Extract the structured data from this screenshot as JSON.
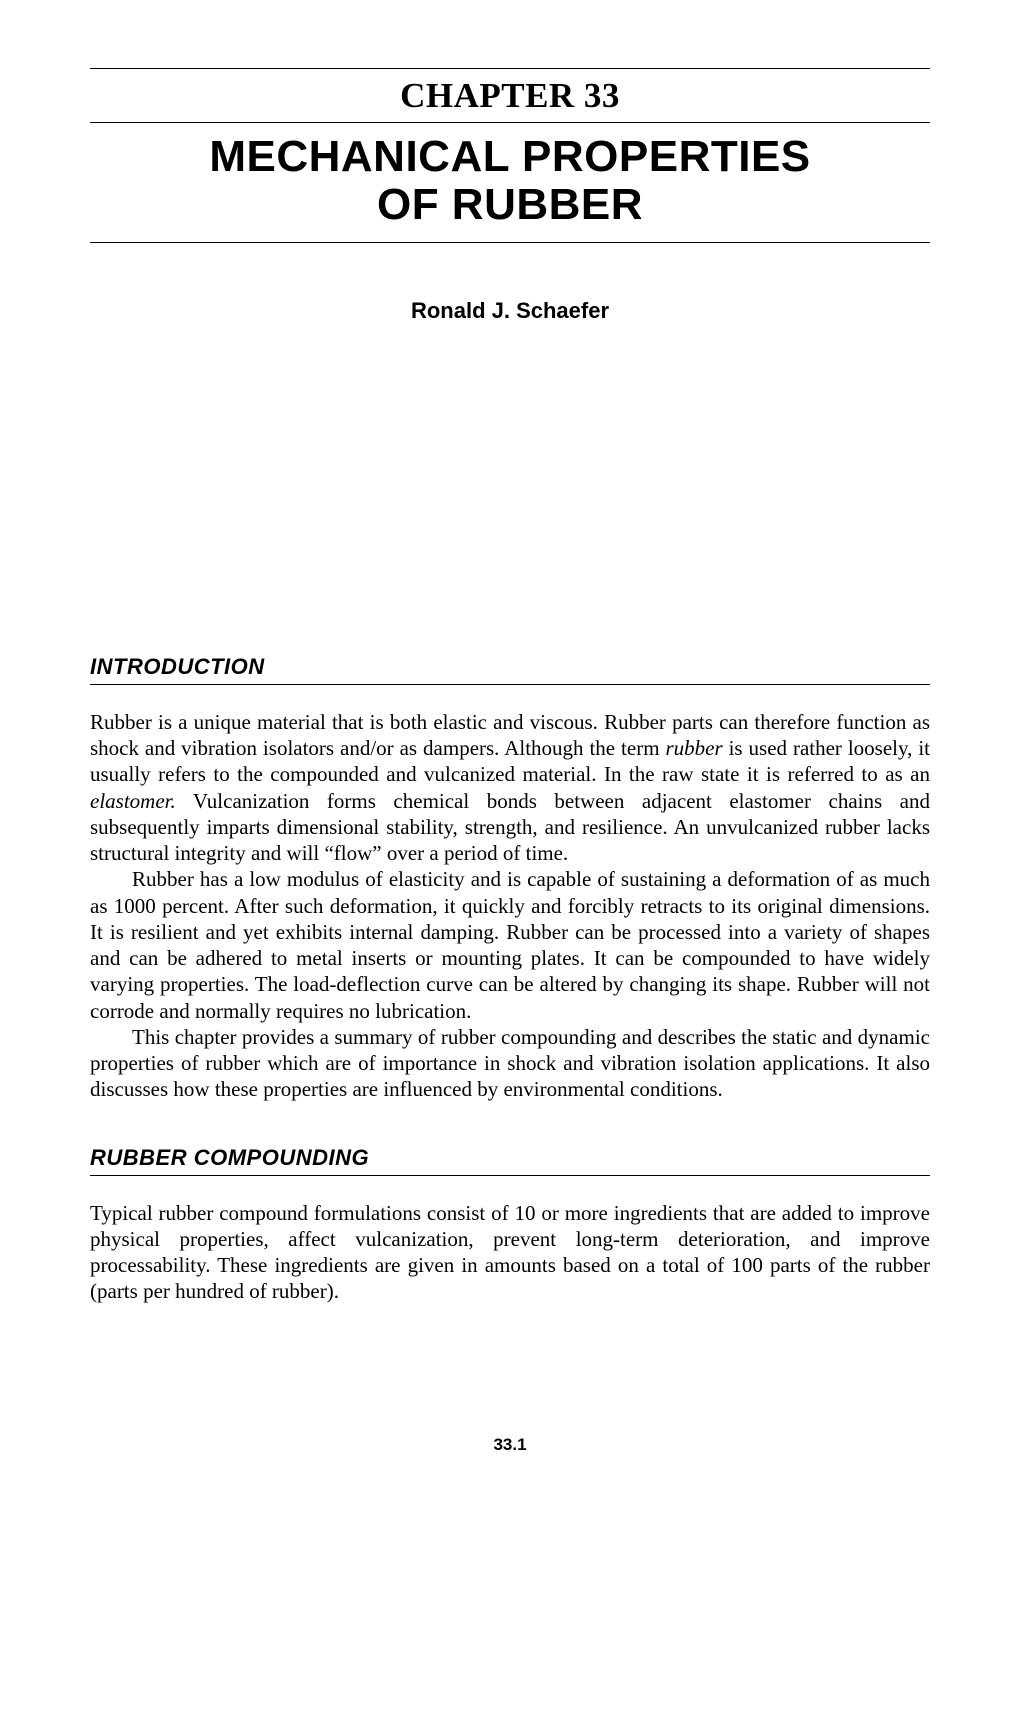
{
  "chapter": {
    "number_label": "CHAPTER 33",
    "title_line1": "MECHANICAL PROPERTIES",
    "title_line2": "OF RUBBER"
  },
  "author": "Ronald J. Schaefer",
  "sections": {
    "intro": {
      "heading": "INTRODUCTION",
      "p1_a": "Rubber is a unique material that is both elastic and viscous. Rubber parts can therefore function as shock and vibration isolators and/or as dampers. Although the term ",
      "p1_i1": "rubber",
      "p1_b": " is used rather loosely, it usually refers to the compounded and vulcanized material. In the raw state it is referred to as an ",
      "p1_i2": "elastomer.",
      "p1_c": " Vulcanization forms chemical bonds between adjacent elastomer chains and subsequently imparts dimensional stability, strength, and resilience. An unvulcanized rubber lacks structural integrity and will “flow” over a period of time.",
      "p2": "Rubber has a low modulus of elasticity and is capable of sustaining a deformation of as much as 1000 percent. After such deformation, it quickly and forcibly retracts to its original dimensions. It is resilient and yet exhibits internal damping. Rubber can be processed into a variety of shapes and can be adhered to metal inserts or mounting plates. It can be compounded to have widely varying properties. The load-deflection curve can be altered by changing its shape. Rubber will not corrode and normally requires no lubrication.",
      "p3": "This chapter provides a summary of rubber compounding and describes the static and dynamic properties of rubber which are of importance in shock and vibration isolation applications. It also discusses how these properties are influenced by environmental conditions."
    },
    "compounding": {
      "heading": "RUBBER COMPOUNDING",
      "p1": "Typical rubber compound formulations consist of 10 or more ingredients that are added to improve physical properties, affect vulcanization, prevent long-term deterioration, and improve processability. These ingredients are given in amounts based on a total of 100 parts of the rubber (parts per hundred of rubber)."
    }
  },
  "page_number": "33.1"
}
